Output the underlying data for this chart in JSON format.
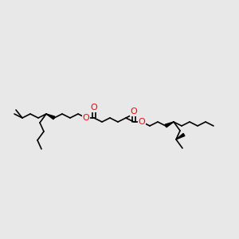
{
  "bg_color": "#e8e8e8",
  "bond_color": "#000000",
  "O_color": "#ff0000",
  "lw": 1.2,
  "fig_width": 3.0,
  "fig_height": 3.0,
  "dpi": 100,
  "xlim": [
    0,
    300
  ],
  "ylim": [
    0,
    300
  ]
}
